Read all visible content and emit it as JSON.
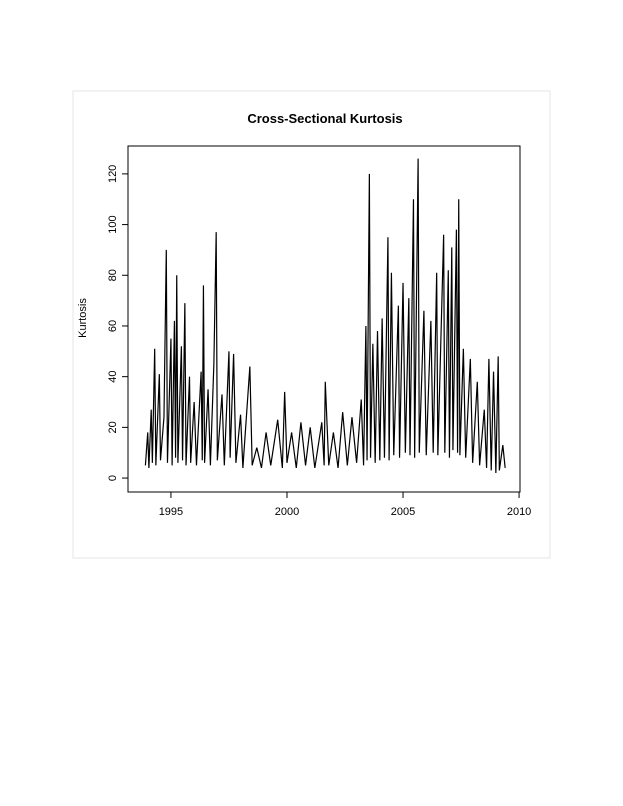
{
  "chart_data": {
    "type": "line",
    "title": "Cross-Sectional Kurtosis",
    "y_label": "Kurtosis",
    "color": "#000000",
    "x": [
      1993.9,
      1994.0,
      1994.05,
      1994.15,
      1994.2,
      1994.3,
      1994.35,
      1994.5,
      1994.55,
      1994.7,
      1994.8,
      1994.85,
      1995.0,
      1995.05,
      1995.15,
      1995.2,
      1995.25,
      1995.3,
      1995.45,
      1995.5,
      1995.6,
      1995.65,
      1995.8,
      1995.85,
      1996.0,
      1996.1,
      1996.3,
      1996.35,
      1996.4,
      1996.45,
      1996.6,
      1996.7,
      1996.85,
      1996.95,
      1997.0,
      1997.2,
      1997.3,
      1997.5,
      1997.55,
      1997.7,
      1997.8,
      1998.0,
      1998.1,
      1998.4,
      1998.5,
      1998.7,
      1998.9,
      1999.1,
      1999.3,
      1999.6,
      1999.8,
      1999.9,
      2000.0,
      2000.2,
      2000.4,
      2000.6,
      2000.8,
      2001.0,
      2001.2,
      2001.5,
      2001.6,
      2001.65,
      2001.8,
      2002.0,
      2002.2,
      2002.4,
      2002.6,
      2002.8,
      2003.0,
      2003.2,
      2003.3,
      2003.4,
      2003.45,
      2003.55,
      2003.6,
      2003.7,
      2003.8,
      2003.9,
      2004.0,
      2004.1,
      2004.2,
      2004.35,
      2004.4,
      2004.5,
      2004.6,
      2004.8,
      2004.85,
      2005.0,
      2005.1,
      2005.25,
      2005.3,
      2005.45,
      2005.5,
      2005.65,
      2005.7,
      2005.9,
      2006.0,
      2006.2,
      2006.3,
      2006.45,
      2006.5,
      2006.75,
      2006.8,
      2006.95,
      2007.0,
      2007.1,
      2007.15,
      2007.3,
      2007.35,
      2007.4,
      2007.45,
      2007.6,
      2007.7,
      2007.9,
      2008.0,
      2008.2,
      2008.3,
      2008.5,
      2008.6,
      2008.7,
      2008.8,
      2008.9,
      2009.0,
      2009.1,
      2009.15,
      2009.3,
      2009.4
    ],
    "values": [
      5,
      18,
      4,
      27,
      6,
      51,
      5,
      41,
      7,
      24,
      90,
      6,
      55,
      5,
      62,
      8,
      80,
      6,
      52,
      7,
      69,
      5,
      40,
      6,
      30,
      5,
      42,
      7,
      76,
      6,
      35,
      5,
      45,
      97,
      7,
      33,
      5,
      50,
      8,
      49,
      6,
      25,
      4,
      44,
      5,
      12,
      4,
      18,
      5,
      23,
      4,
      34,
      6,
      18,
      4,
      22,
      5,
      20,
      4,
      22,
      5,
      38,
      5,
      18,
      4,
      26,
      5,
      24,
      6,
      31,
      5,
      60,
      7,
      120,
      8,
      53,
      6,
      58,
      7,
      63,
      8,
      95,
      7,
      81,
      9,
      68,
      8,
      77,
      10,
      71,
      9,
      110,
      8,
      126,
      10,
      66,
      9,
      62,
      10,
      81,
      9,
      96,
      10,
      82,
      8,
      91,
      11,
      98,
      10,
      110,
      9,
      51,
      8,
      47,
      6,
      38,
      5,
      27,
      4,
      47,
      3,
      42,
      2,
      48,
      3,
      13,
      4
    ],
    "xlim": [
      1993.15,
      2010.04
    ],
    "ylim": [
      -5.5,
      131
    ],
    "xticks": [
      1995,
      2000,
      2005,
      2010
    ],
    "yticks": [
      0,
      20,
      40,
      60,
      80,
      100,
      120
    ]
  }
}
